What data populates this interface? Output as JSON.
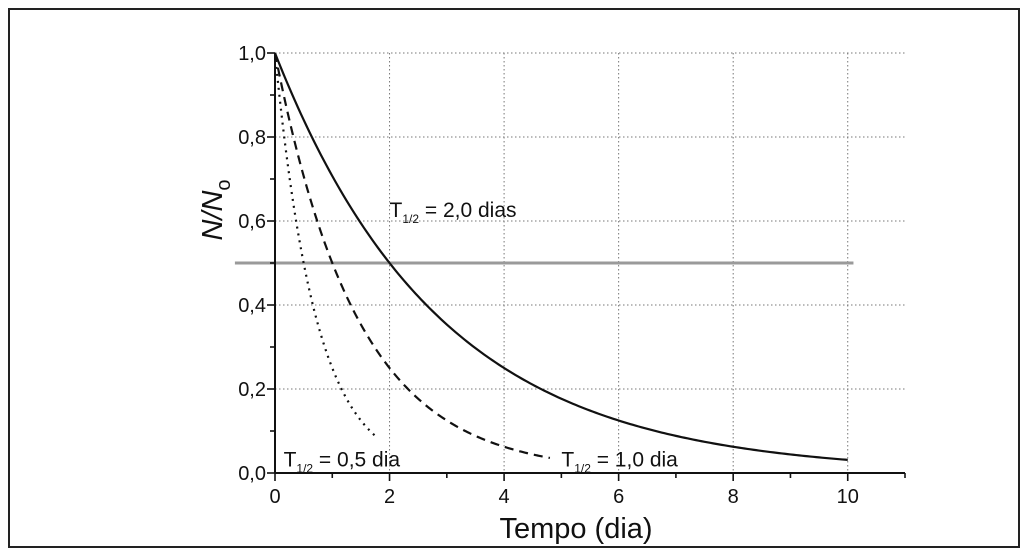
{
  "chart_data": {
    "type": "line",
    "xlabel": "Tempo (dia)",
    "ylabel": {
      "main": "N/N",
      "sub": "o"
    },
    "xlim": [
      0,
      11
    ],
    "ylim": [
      0,
      1
    ],
    "x_ticks": [
      "0",
      "2",
      "4",
      "6",
      "8",
      "10"
    ],
    "y_ticks": [
      "0,0",
      "0,2",
      "0,4",
      "0,6",
      "0,8",
      "1,0"
    ],
    "grid": true,
    "series": [
      {
        "name": "T1/2 = 2,0 dias",
        "half_life": 2.0,
        "x_range": [
          0,
          10
        ],
        "style": "solid",
        "color": "#111111"
      },
      {
        "name": "T1/2 = 1,0 dia",
        "half_life": 1.0,
        "x_range": [
          0,
          4.8
        ],
        "style": "dashed",
        "color": "#111111"
      },
      {
        "name": "T1/2 = 0,5 dia",
        "half_life": 0.5,
        "x_range": [
          0,
          1.8
        ],
        "style": "dotted",
        "color": "#111111"
      }
    ],
    "reference_line": {
      "y": 0.5,
      "x_range": [
        -0.7,
        10.1
      ],
      "color": "#9a9a9a"
    },
    "annotations": [
      {
        "base": "T",
        "sub": "1/2",
        "rest": " = 2,0 dias",
        "x": 2.0,
        "y": 0.61
      },
      {
        "base": "T",
        "sub": "1/2",
        "rest": " = 1,0 dia",
        "x": 5.0,
        "y": 0.015
      },
      {
        "base": "T",
        "sub": "1/2",
        "rest": " = 0,5 dia",
        "x": 0.15,
        "y": 0.015
      }
    ]
  }
}
